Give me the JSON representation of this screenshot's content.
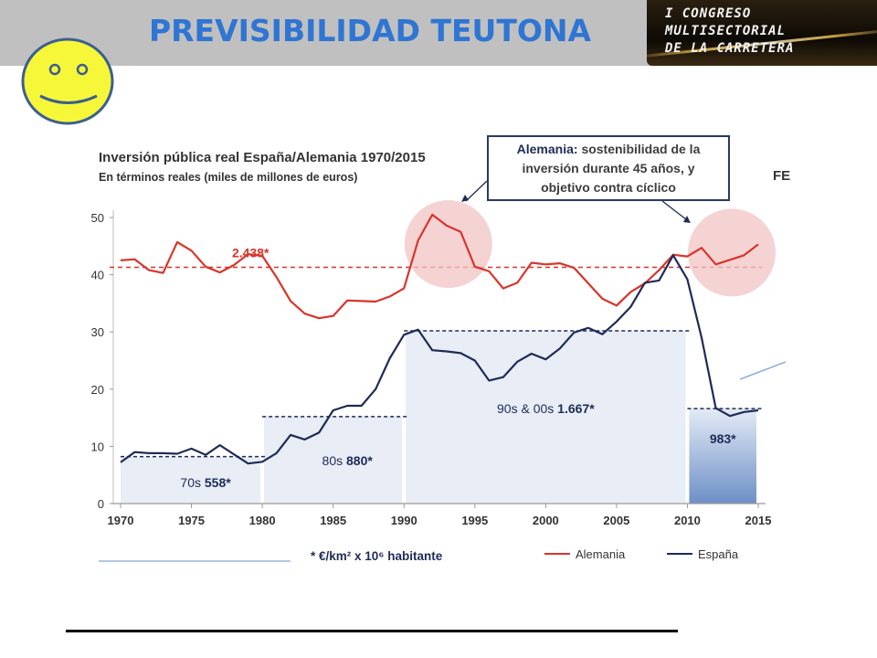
{
  "slide": {
    "title": "PREVISIBILIDAD TEUTONA",
    "logo_lines": [
      "I CONGRESO",
      "MULTISECTORIAL",
      "DE LA CARRETERA"
    ],
    "smiley_color": "#f7f73a",
    "header_color": "#c0c0c0",
    "title_color": "#2e75d4"
  },
  "chart_data": {
    "type": "line",
    "title": "Inversión pública real España/Alemania 1970/2015",
    "subtitle": "En términos reales (miles de millones de euros)",
    "xlabel": "",
    "ylabel": "",
    "xlim": [
      1970,
      2015
    ],
    "ylim": [
      0,
      50
    ],
    "yticks": [
      "0",
      "10",
      "20",
      "30",
      "40",
      "50"
    ],
    "xticks": [
      "1970",
      "1975",
      "1980",
      "1985",
      "1990",
      "1995",
      "2000",
      "2005",
      "2010",
      "2015"
    ],
    "footnote": "* €/km² x 10⁶ habitante",
    "cut_off_text": "FE",
    "legend": {
      "position": "bottom-right",
      "entries": [
        "Alemania",
        "España"
      ]
    },
    "series": [
      {
        "name": "Alemania",
        "color": "#d9342b",
        "x": [
          1970,
          1971,
          1972,
          1973,
          1974,
          1975,
          1976,
          1977,
          1978,
          1979,
          1980,
          1981,
          1982,
          1983,
          1984,
          1985,
          1986,
          1987,
          1988,
          1989,
          1990,
          1991,
          1992,
          1993,
          1994,
          1995,
          1996,
          1997,
          1998,
          1999,
          2000,
          2001,
          2002,
          2003,
          2004,
          2005,
          2006,
          2007,
          2008,
          2009,
          2010,
          2011,
          2012,
          2013,
          2014,
          2015
        ],
        "values": [
          42.5,
          42.7,
          40.8,
          40.3,
          45.7,
          44.2,
          41.4,
          40.4,
          41.7,
          43.6,
          43.3,
          39.6,
          35.4,
          33.2,
          32.4,
          32.8,
          35.5,
          35.4,
          35.3,
          36.2,
          37.6,
          46.0,
          50.5,
          48.6,
          47.5,
          41.4,
          40.6,
          37.6,
          38.6,
          42.1,
          41.8,
          42.0,
          41.2,
          38.5,
          35.8,
          34.6,
          37.0,
          38.5,
          40.8,
          43.5,
          43.2,
          44.7,
          41.8,
          42.6,
          43.4,
          45.3
        ]
      },
      {
        "name": "España",
        "color": "#1f2b56",
        "x": [
          1970,
          1971,
          1972,
          1973,
          1974,
          1975,
          1976,
          1977,
          1978,
          1979,
          1980,
          1981,
          1982,
          1983,
          1984,
          1985,
          1986,
          1987,
          1988,
          1989,
          1990,
          1991,
          1992,
          1993,
          1994,
          1995,
          1996,
          1997,
          1998,
          1999,
          2000,
          2001,
          2002,
          2003,
          2004,
          2005,
          2006,
          2007,
          2008,
          2009,
          2010,
          2011,
          2012,
          2013,
          2014,
          2015
        ],
        "values": [
          7.2,
          9.0,
          8.8,
          8.8,
          8.7,
          9.6,
          8.5,
          10.2,
          8.6,
          7.0,
          7.3,
          8.8,
          12.0,
          11.2,
          12.4,
          16.3,
          17.1,
          17.1,
          20.0,
          25.4,
          29.5,
          30.4,
          26.8,
          26.6,
          26.3,
          25.0,
          21.5,
          22.1,
          24.8,
          26.2,
          25.2,
          27.1,
          29.9,
          30.7,
          29.6,
          31.8,
          34.4,
          38.6,
          39.0,
          43.4,
          39.2,
          29.0,
          16.7,
          15.3,
          16.0,
          16.3
        ]
      }
    ],
    "reference_lines": [
      {
        "series": "Alemania",
        "from": 1970,
        "to": 2015,
        "value": 41.3,
        "label": "2.438*"
      },
      {
        "series": "España",
        "from": 1970,
        "to": 1980,
        "value": 8.2
      },
      {
        "series": "España",
        "from": 1980,
        "to": 1990,
        "value": 15.2
      },
      {
        "series": "España",
        "from": 1990,
        "to": 2010,
        "value": 30.2
      },
      {
        "series": "España",
        "from": 2010,
        "to": 2015,
        "value": 16.6
      }
    ],
    "period_bands": [
      {
        "from": 1970,
        "to": 1980,
        "label_prefix": "70s",
        "label_value": "558*"
      },
      {
        "from": 1980,
        "to": 1990,
        "label_prefix": "80s",
        "label_value": "880*"
      },
      {
        "from": 1990,
        "to": 2010,
        "label_prefix": "90s & 00s",
        "label_value": "1.667*"
      },
      {
        "from": 2010,
        "to": 2015,
        "label_prefix": "",
        "label_value": "983*"
      }
    ],
    "callout": {
      "bold": "Alemania:",
      "text_line1": "sostenibilidad de la",
      "text_line2": "inversión durante 45 años, y",
      "text_line3": "objetivo contra cíclico"
    },
    "highlights": [
      {
        "center_x": 1993,
        "center_y": 46
      },
      {
        "center_x": 2013,
        "center_y": 44.5
      }
    ]
  }
}
